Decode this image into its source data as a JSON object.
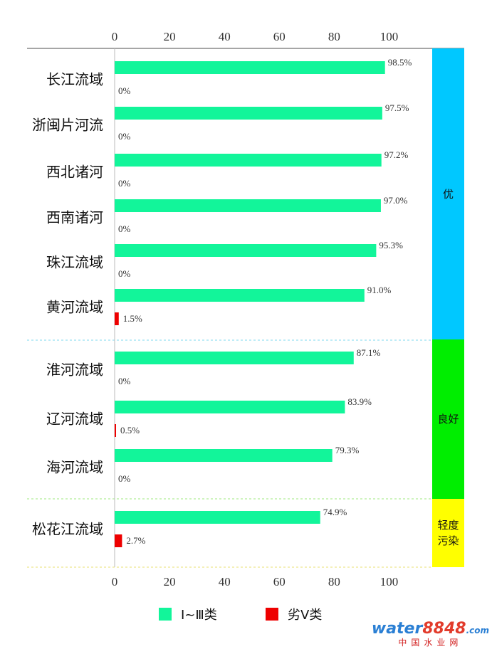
{
  "chart_data": {
    "type": "bar",
    "orientation": "horizontal",
    "categories": [
      "长江流域",
      "浙闽片河流",
      "西北诸河",
      "西南诸河",
      "珠江流域",
      "黄河流域",
      "淮河流域",
      "辽河流域",
      "海河流域",
      "松花江流域"
    ],
    "series": [
      {
        "name": "Ⅰ~Ⅲ类",
        "color": "#12f59a",
        "values": [
          98.5,
          97.5,
          97.2,
          97.0,
          95.3,
          91.0,
          87.1,
          83.9,
          79.3,
          74.9
        ]
      },
      {
        "name": "劣Ⅴ类",
        "color": "#ee0000",
        "values": [
          0,
          0,
          0,
          0,
          0,
          1.5,
          0,
          0.5,
          0,
          2.7
        ]
      }
    ],
    "value_labels": {
      "s0": [
        "98.5%",
        "97.5%",
        "97.2%",
        "97.0%",
        "95.3%",
        "91.0%",
        "87.1%",
        "83.9%",
        "79.3%",
        "74.9%"
      ],
      "s1": [
        "0%",
        "0%",
        "0%",
        "0%",
        "0%",
        "1.5%",
        "0%",
        "0.5%",
        "0%",
        "2.7%"
      ]
    },
    "xlim": [
      0,
      100
    ],
    "xticks": [
      "0",
      "20",
      "40",
      "60",
      "80",
      "100"
    ],
    "axis_top": true,
    "axis_bottom": true,
    "grid": false,
    "legend_position": "bottom-center",
    "bands": [
      {
        "label": "优",
        "color": "#00c8ff",
        "from": 0,
        "to": 5
      },
      {
        "label": "良好",
        "color": "#00ee00",
        "from": 6,
        "to": 8
      },
      {
        "label": "轻度污染",
        "lines": [
          "轻度",
          "污染"
        ],
        "color": "#ffff00",
        "from": 9,
        "to": 9
      }
    ]
  },
  "watermark": {
    "text_a": "water",
    "text_b": "8848",
    "text_com": ".com",
    "subtitle": "中国水业网"
  }
}
